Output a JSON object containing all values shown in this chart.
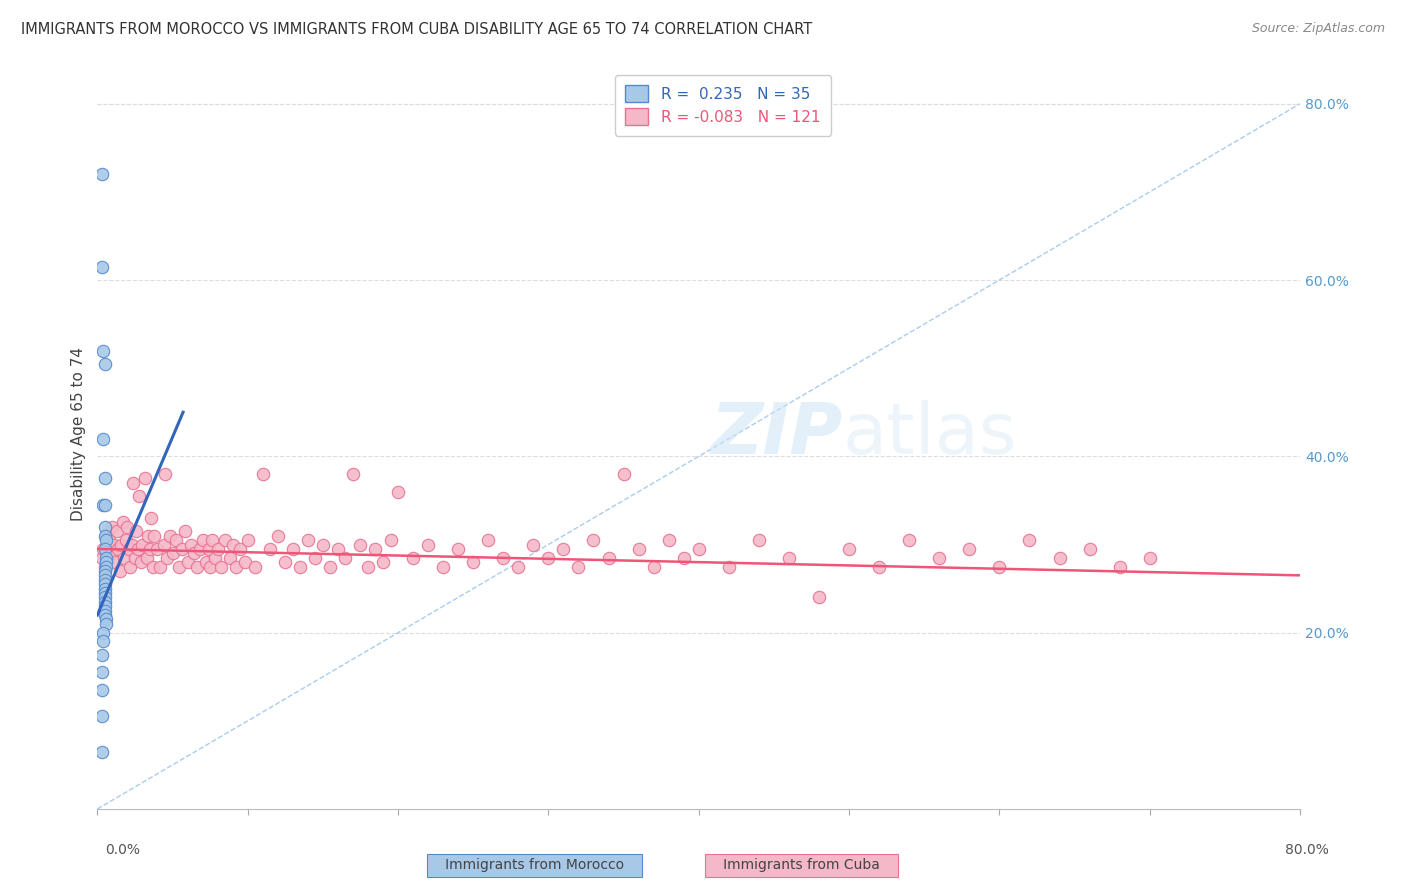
{
  "title": "IMMIGRANTS FROM MOROCCO VS IMMIGRANTS FROM CUBA DISABILITY AGE 65 TO 74 CORRELATION CHART",
  "source": "Source: ZipAtlas.com",
  "ylabel": "Disability Age 65 to 74",
  "ylabel_right_ticks": [
    "20.0%",
    "40.0%",
    "60.0%",
    "80.0%"
  ],
  "ylabel_right_vals": [
    0.2,
    0.4,
    0.6,
    0.8
  ],
  "legend_morocco": "Immigrants from Morocco",
  "legend_cuba": "Immigrants from Cuba",
  "r_morocco": 0.235,
  "n_morocco": 35,
  "r_cuba": -0.083,
  "n_cuba": 121,
  "color_morocco_fill": "#a8c8e8",
  "color_morocco_edge": "#5588cc",
  "color_cuba_fill": "#f5b8c8",
  "color_cuba_edge": "#e87090",
  "color_morocco_line": "#3366bb",
  "color_cuba_line": "#ee5577",
  "color_diag_line": "#aaccee",
  "color_grid": "#dddddd",
  "watermark_color": "#d0e8f8",
  "xmin": 0.0,
  "xmax": 0.8,
  "ymin": 0.0,
  "ymax": 0.85,
  "morocco_points": [
    [
      0.003,
      0.72
    ],
    [
      0.003,
      0.615
    ],
    [
      0.004,
      0.52
    ],
    [
      0.005,
      0.505
    ],
    [
      0.004,
      0.42
    ],
    [
      0.005,
      0.375
    ],
    [
      0.004,
      0.345
    ],
    [
      0.005,
      0.345
    ],
    [
      0.005,
      0.32
    ],
    [
      0.005,
      0.31
    ],
    [
      0.006,
      0.305
    ],
    [
      0.005,
      0.295
    ],
    [
      0.006,
      0.285
    ],
    [
      0.006,
      0.28
    ],
    [
      0.006,
      0.275
    ],
    [
      0.005,
      0.27
    ],
    [
      0.005,
      0.265
    ],
    [
      0.005,
      0.26
    ],
    [
      0.005,
      0.255
    ],
    [
      0.005,
      0.25
    ],
    [
      0.005,
      0.245
    ],
    [
      0.005,
      0.24
    ],
    [
      0.005,
      0.235
    ],
    [
      0.005,
      0.23
    ],
    [
      0.005,
      0.225
    ],
    [
      0.005,
      0.22
    ],
    [
      0.006,
      0.215
    ],
    [
      0.006,
      0.21
    ],
    [
      0.004,
      0.2
    ],
    [
      0.004,
      0.19
    ],
    [
      0.003,
      0.175
    ],
    [
      0.003,
      0.155
    ],
    [
      0.003,
      0.135
    ],
    [
      0.003,
      0.105
    ],
    [
      0.003,
      0.065
    ]
  ],
  "cuba_points": [
    [
      0.003,
      0.285
    ],
    [
      0.004,
      0.295
    ],
    [
      0.005,
      0.275
    ],
    [
      0.006,
      0.31
    ],
    [
      0.007,
      0.285
    ],
    [
      0.008,
      0.305
    ],
    [
      0.009,
      0.29
    ],
    [
      0.01,
      0.32
    ],
    [
      0.011,
      0.3
    ],
    [
      0.012,
      0.28
    ],
    [
      0.013,
      0.315
    ],
    [
      0.014,
      0.295
    ],
    [
      0.015,
      0.27
    ],
    [
      0.016,
      0.3
    ],
    [
      0.017,
      0.325
    ],
    [
      0.018,
      0.285
    ],
    [
      0.019,
      0.305
    ],
    [
      0.02,
      0.32
    ],
    [
      0.021,
      0.295
    ],
    [
      0.022,
      0.275
    ],
    [
      0.023,
      0.3
    ],
    [
      0.024,
      0.37
    ],
    [
      0.025,
      0.285
    ],
    [
      0.026,
      0.315
    ],
    [
      0.027,
      0.295
    ],
    [
      0.028,
      0.355
    ],
    [
      0.029,
      0.28
    ],
    [
      0.03,
      0.3
    ],
    [
      0.032,
      0.375
    ],
    [
      0.033,
      0.285
    ],
    [
      0.034,
      0.31
    ],
    [
      0.035,
      0.295
    ],
    [
      0.036,
      0.33
    ],
    [
      0.037,
      0.275
    ],
    [
      0.038,
      0.31
    ],
    [
      0.04,
      0.295
    ],
    [
      0.042,
      0.275
    ],
    [
      0.044,
      0.3
    ],
    [
      0.045,
      0.38
    ],
    [
      0.046,
      0.285
    ],
    [
      0.048,
      0.31
    ],
    [
      0.05,
      0.29
    ],
    [
      0.052,
      0.305
    ],
    [
      0.054,
      0.275
    ],
    [
      0.056,
      0.295
    ],
    [
      0.058,
      0.315
    ],
    [
      0.06,
      0.28
    ],
    [
      0.062,
      0.3
    ],
    [
      0.064,
      0.29
    ],
    [
      0.066,
      0.275
    ],
    [
      0.068,
      0.295
    ],
    [
      0.07,
      0.305
    ],
    [
      0.072,
      0.28
    ],
    [
      0.074,
      0.295
    ],
    [
      0.075,
      0.275
    ],
    [
      0.076,
      0.305
    ],
    [
      0.078,
      0.285
    ],
    [
      0.08,
      0.295
    ],
    [
      0.082,
      0.275
    ],
    [
      0.085,
      0.305
    ],
    [
      0.088,
      0.285
    ],
    [
      0.09,
      0.3
    ],
    [
      0.092,
      0.275
    ],
    [
      0.095,
      0.295
    ],
    [
      0.098,
      0.28
    ],
    [
      0.1,
      0.305
    ],
    [
      0.105,
      0.275
    ],
    [
      0.11,
      0.38
    ],
    [
      0.115,
      0.295
    ],
    [
      0.12,
      0.31
    ],
    [
      0.125,
      0.28
    ],
    [
      0.13,
      0.295
    ],
    [
      0.135,
      0.275
    ],
    [
      0.14,
      0.305
    ],
    [
      0.145,
      0.285
    ],
    [
      0.15,
      0.3
    ],
    [
      0.155,
      0.275
    ],
    [
      0.16,
      0.295
    ],
    [
      0.165,
      0.285
    ],
    [
      0.17,
      0.38
    ],
    [
      0.175,
      0.3
    ],
    [
      0.18,
      0.275
    ],
    [
      0.185,
      0.295
    ],
    [
      0.19,
      0.28
    ],
    [
      0.195,
      0.305
    ],
    [
      0.2,
      0.36
    ],
    [
      0.21,
      0.285
    ],
    [
      0.22,
      0.3
    ],
    [
      0.23,
      0.275
    ],
    [
      0.24,
      0.295
    ],
    [
      0.25,
      0.28
    ],
    [
      0.26,
      0.305
    ],
    [
      0.27,
      0.285
    ],
    [
      0.28,
      0.275
    ],
    [
      0.29,
      0.3
    ],
    [
      0.3,
      0.285
    ],
    [
      0.31,
      0.295
    ],
    [
      0.32,
      0.275
    ],
    [
      0.33,
      0.305
    ],
    [
      0.34,
      0.285
    ],
    [
      0.35,
      0.38
    ],
    [
      0.36,
      0.295
    ],
    [
      0.37,
      0.275
    ],
    [
      0.38,
      0.305
    ],
    [
      0.39,
      0.285
    ],
    [
      0.4,
      0.295
    ],
    [
      0.42,
      0.275
    ],
    [
      0.44,
      0.305
    ],
    [
      0.46,
      0.285
    ],
    [
      0.48,
      0.24
    ],
    [
      0.5,
      0.295
    ],
    [
      0.52,
      0.275
    ],
    [
      0.54,
      0.305
    ],
    [
      0.56,
      0.285
    ],
    [
      0.58,
      0.295
    ],
    [
      0.6,
      0.275
    ],
    [
      0.62,
      0.305
    ],
    [
      0.64,
      0.285
    ],
    [
      0.66,
      0.295
    ],
    [
      0.68,
      0.275
    ],
    [
      0.7,
      0.285
    ]
  ],
  "morocco_trend_x": [
    0.0,
    0.057
  ],
  "morocco_trend_y": [
    0.22,
    0.45
  ],
  "cuba_trend_x": [
    0.0,
    0.8
  ],
  "cuba_trend_y": [
    0.295,
    0.265
  ]
}
